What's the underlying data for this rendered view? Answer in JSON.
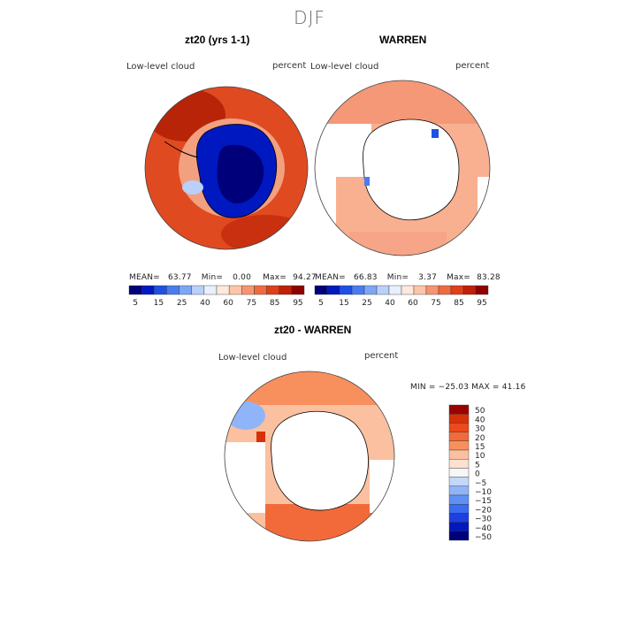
{
  "season": "DJF",
  "panels": [
    {
      "title": "zt20 (yrs 1-1)",
      "field": "Low-level cloud",
      "units": "percent",
      "stats": {
        "mean_label": "MEAN=",
        "mean": "63.77",
        "min_label": "Min=",
        "min": "0.00",
        "max_label": "Max=",
        "max": "94.27"
      }
    },
    {
      "title": "WARREN",
      "field": "Low-level cloud",
      "units": "percent",
      "stats": {
        "mean_label": "MEAN=",
        "mean": "66.83",
        "min_label": "Min=",
        "min": "3.37",
        "max_label": "Max=",
        "max": "83.28"
      }
    }
  ],
  "diff_panel": {
    "title": "zt20 - WARREN",
    "field": "Low-level cloud",
    "units": "percent",
    "minmax": "MIN = −25.03 MAX =  41.16"
  },
  "colors": {
    "abs_scale": [
      "#00007a",
      "#0018c0",
      "#1e50e6",
      "#4a7cf0",
      "#7ea6f6",
      "#b8d0fa",
      "#e8f0ff",
      "#ffe8dc",
      "#fcc5aa",
      "#f79570",
      "#f06a40",
      "#e04018",
      "#c02008",
      "#900000"
    ],
    "diff_scale": [
      "#00007a",
      "#0018c0",
      "#1e40e0",
      "#3a6cf0",
      "#6090f4",
      "#90b4f8",
      "#c4d8fb",
      "#f6f6f6",
      "#fde0d0",
      "#fbc0a0",
      "#f8905e",
      "#f26a3a",
      "#ea4a1c",
      "#d8300a",
      "#9c0000"
    ]
  },
  "chart_data": [
    {
      "type": "heatmap",
      "projection": "south-polar-stereographic",
      "title": "zt20 (yrs 1-1)",
      "variable": "Low-level cloud",
      "units": "percent",
      "mean": 63.77,
      "min": 0.0,
      "max": 94.27,
      "colorbar": {
        "ticks": [
          "5",
          "15",
          "25",
          "40",
          "60",
          "75",
          "85",
          "95"
        ],
        "levels": [
          5,
          10,
          15,
          20,
          25,
          30,
          40,
          50,
          60,
          70,
          75,
          80,
          85,
          90,
          95
        ]
      }
    },
    {
      "type": "heatmap",
      "projection": "south-polar-stereographic",
      "title": "WARREN",
      "variable": "Low-level cloud",
      "units": "percent",
      "mean": 66.83,
      "min": 3.37,
      "max": 83.28,
      "colorbar": {
        "ticks": [
          "5",
          "15",
          "25",
          "40",
          "60",
          "75",
          "85",
          "95"
        ],
        "levels": [
          5,
          10,
          15,
          20,
          25,
          30,
          40,
          50,
          60,
          70,
          75,
          80,
          85,
          90,
          95
        ]
      }
    },
    {
      "type": "heatmap",
      "projection": "south-polar-stereographic",
      "title": "zt20 - WARREN",
      "variable": "Low-level cloud",
      "units": "percent",
      "min": -25.03,
      "max": 41.16,
      "colorbar": {
        "ticks": [
          "50",
          "40",
          "30",
          "20",
          "15",
          "10",
          "5",
          "0",
          "−5",
          "−10",
          "−15",
          "−20",
          "−30",
          "−40",
          "−50"
        ]
      }
    }
  ]
}
